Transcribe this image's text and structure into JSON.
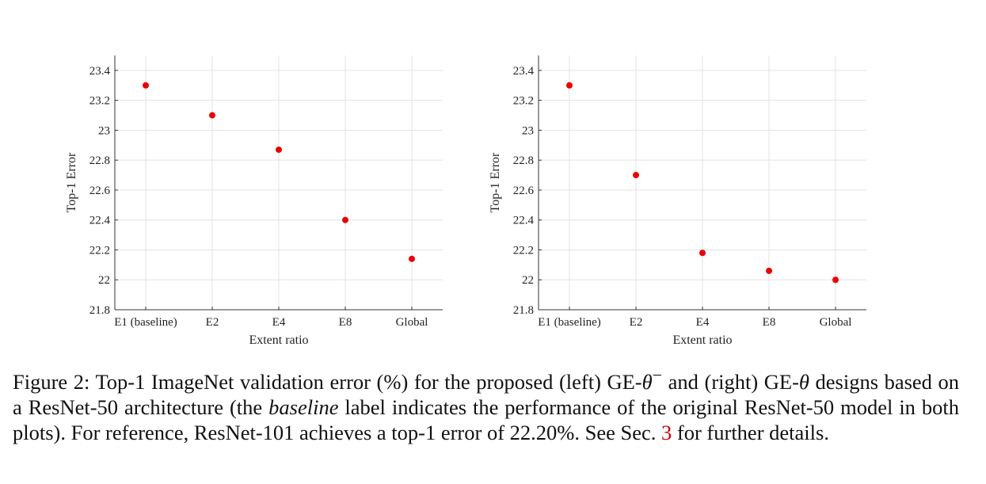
{
  "chart_data": [
    {
      "type": "scatter",
      "categories": [
        "E1 (baseline)",
        "E2",
        "E4",
        "E8",
        "Global"
      ],
      "values": [
        23.3,
        23.1,
        22.87,
        22.4,
        22.14
      ],
      "xlabel": "Extent ratio",
      "ylabel": "Top-1 Error",
      "ylim": [
        21.8,
        23.5
      ],
      "yticks": [
        "21.8",
        "22",
        "22.2",
        "22.4",
        "22.6",
        "22.8",
        "23",
        "23.2",
        "23.4"
      ],
      "grid": true,
      "marker_color": "#ee0000"
    },
    {
      "type": "scatter",
      "categories": [
        "E1 (baseline)",
        "E2",
        "E4",
        "E8",
        "Global"
      ],
      "values": [
        23.3,
        22.7,
        22.18,
        22.06,
        22.0
      ],
      "xlabel": "Extent ratio",
      "ylabel": "Top-1 Error",
      "ylim": [
        21.8,
        23.5
      ],
      "yticks": [
        "21.8",
        "22",
        "22.2",
        "22.4",
        "22.6",
        "22.8",
        "23",
        "23.2",
        "23.4"
      ],
      "grid": true,
      "marker_color": "#ee0000"
    }
  ],
  "caption": {
    "prefix": "Figure 2: Top-1 ImageNet validation error (%) for the proposed (left) GE-",
    "theta_minus": "θ",
    "sup_minus": "−",
    "middle": " and (right) GE-",
    "theta": "θ",
    "line2_a": " designs based on a ResNet-50 architecture (the ",
    "baseline_word": "baseline",
    "line2_b": " label indicates the performance of the original ResNet-50 model in both plots). For reference, ResNet-101 achieves a top-1 error of 22.20%. See Sec. ",
    "ref_number": "3",
    "suffix": " for further details."
  }
}
